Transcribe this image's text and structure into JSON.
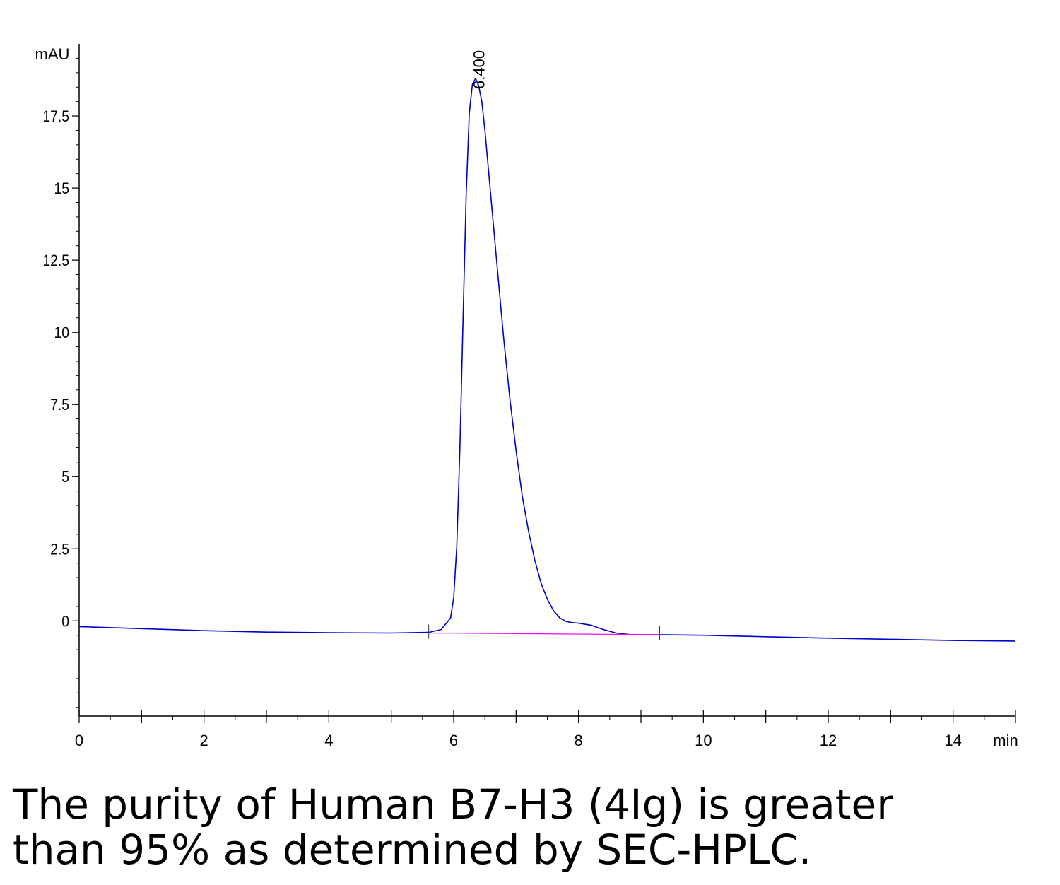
{
  "chart_data": {
    "type": "line",
    "ylabel": "mAU",
    "xlabel": "min",
    "xlim": [
      0,
      15
    ],
    "ylim": [
      -3.3,
      20
    ],
    "x_ticks": [
      0,
      2,
      4,
      6,
      8,
      10,
      12,
      14
    ],
    "x_tick_labels": [
      "0",
      "2",
      "4",
      "6",
      "8",
      "10",
      "12",
      "14"
    ],
    "y_ticks": [
      0,
      2.5,
      5,
      7.5,
      10,
      12.5,
      15,
      17.5
    ],
    "y_tick_labels": [
      "0",
      "2.5",
      "5",
      "7.5",
      "10",
      "12.5",
      "15",
      "17.5"
    ],
    "grid": false,
    "series": [
      {
        "color": "#0000cc",
        "x": [
          0,
          1,
          2,
          3,
          4,
          5,
          5.6,
          5.8,
          5.95,
          6.0,
          6.05,
          6.1,
          6.15,
          6.2,
          6.25,
          6.3,
          6.35,
          6.4,
          6.45,
          6.5,
          6.6,
          6.7,
          6.8,
          6.9,
          7.0,
          7.1,
          7.2,
          7.3,
          7.4,
          7.5,
          7.6,
          7.7,
          7.8,
          7.9,
          8.0,
          8.2,
          8.4,
          8.6,
          8.8,
          9.0,
          9.3,
          10,
          11,
          12,
          13,
          14,
          15
        ],
        "y": [
          -0.2,
          -0.27,
          -0.34,
          -0.39,
          -0.41,
          -0.42,
          -0.4,
          -0.3,
          0.1,
          0.8,
          2.6,
          6.0,
          10.5,
          14.8,
          17.6,
          18.6,
          18.8,
          18.55,
          18.0,
          17.0,
          14.6,
          12.2,
          9.8,
          7.7,
          5.9,
          4.3,
          3.1,
          2.1,
          1.3,
          0.75,
          0.35,
          0.1,
          -0.02,
          -0.06,
          -0.08,
          -0.15,
          -0.3,
          -0.42,
          -0.47,
          -0.48,
          -0.48,
          -0.5,
          -0.55,
          -0.6,
          -0.64,
          -0.68,
          -0.7
        ]
      },
      {
        "color": "#ff00ff",
        "x": [
          5.6,
          9.3
        ],
        "y": [
          -0.42,
          -0.48
        ]
      }
    ],
    "annotations": [
      {
        "text": "6.400",
        "x": 6.4,
        "rotation": -90
      }
    ],
    "caption": [
      "The purity of Human B7-H3 (4Ig) is greater",
      "than 95% as determined by SEC-HPLC."
    ]
  }
}
